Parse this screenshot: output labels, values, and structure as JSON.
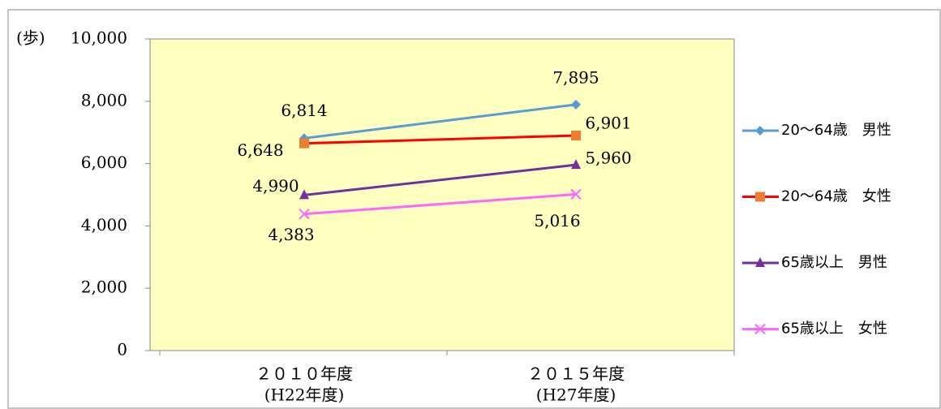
{
  "chart_data": {
    "type": "line",
    "y_unit": "(歩)",
    "categories": [
      [
        "２０１０年度",
        "(H22年度)"
      ],
      [
        "２０１５年度",
        "(H27年度)"
      ]
    ],
    "series": [
      {
        "name": "20～64歳　男性",
        "color": "#5b9bd5",
        "marker_color": "#5b9bd5",
        "marker": "diamond",
        "values": [
          6814,
          7895
        ],
        "value_labels": [
          "6,814",
          "7,895"
        ]
      },
      {
        "name": "20～64歳　女性",
        "color": "#ff0000",
        "marker_color": "#ed7d31",
        "marker": "square",
        "values": [
          6648,
          6901
        ],
        "value_labels": [
          "6,648",
          "6,901"
        ]
      },
      {
        "name": "65歳以上　男性",
        "color": "#7030a0",
        "marker_color": "#7030a0",
        "marker": "triangle",
        "values": [
          4990,
          5960
        ],
        "value_labels": [
          "4,990",
          "5,960"
        ]
      },
      {
        "name": "65歳以上　女性",
        "color": "#ff66ff",
        "marker_color": "#ff66ff",
        "marker": "x",
        "values": [
          4383,
          5016
        ],
        "value_labels": [
          "4,383",
          "5,016"
        ]
      }
    ],
    "ylim": [
      0,
      10000
    ],
    "yticks": [
      0,
      {
        "value": 2000,
        "label": "2,000"
      },
      {
        "value": 4000,
        "label": "4,000"
      },
      {
        "value": 6000,
        "label": "6,000"
      },
      {
        "value": 8000,
        "label": "8,000"
      },
      {
        "value": 10000,
        "label": "10,000"
      }
    ],
    "grid": false,
    "legend": "right",
    "plot_background": "#ffffc0"
  }
}
